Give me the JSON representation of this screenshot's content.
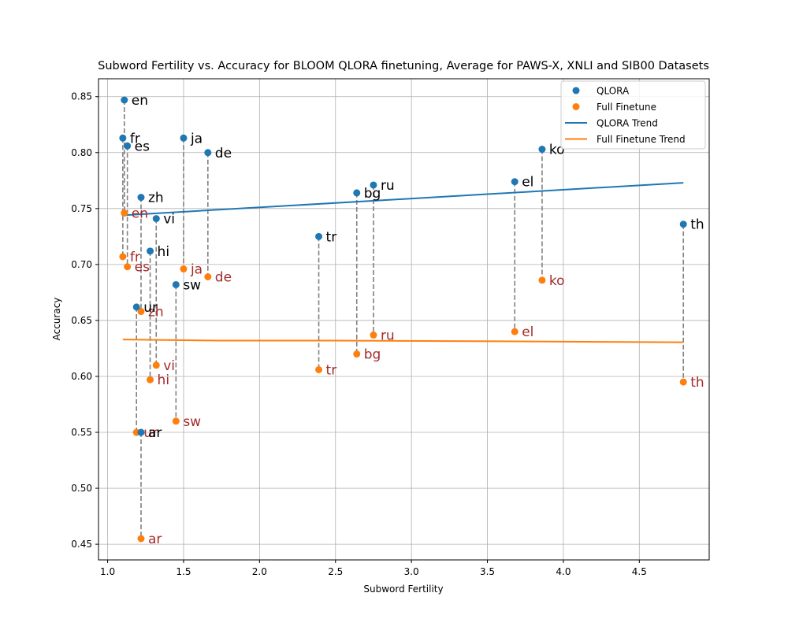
{
  "chart_data": {
    "type": "scatter",
    "title": "Subword Fertility vs. Accuracy for BLOOM QLORA finetuning, Average for PAWS-X, XNLI and SIB00 Datasets",
    "xlabel": "Subword Fertility",
    "ylabel": "Accuracy",
    "xlim": [
      0.94,
      4.96
    ],
    "ylim": [
      0.436,
      0.866
    ],
    "xticks": [
      "1.0",
      "1.5",
      "2.0",
      "2.5",
      "3.0",
      "3.5",
      "4.0",
      "4.5"
    ],
    "xtick_values": [
      1.0,
      1.5,
      2.0,
      2.5,
      3.0,
      3.5,
      4.0,
      4.5
    ],
    "yticks": [
      "0.45",
      "0.50",
      "0.55",
      "0.60",
      "0.65",
      "0.70",
      "0.75",
      "0.80",
      "0.85"
    ],
    "ytick_values": [
      0.45,
      0.5,
      0.55,
      0.6,
      0.65,
      0.7,
      0.75,
      0.8,
      0.85
    ],
    "grid": true,
    "legend_position": "top-right",
    "colors": {
      "qlora": "#1f77b4",
      "full": "#ff7f0e",
      "qlora_label": "#000000",
      "full_label": "#a52a2a",
      "connector": "#808080",
      "grid": "#b0b0b0"
    },
    "legend": [
      {
        "label": "QLORA",
        "kind": "marker",
        "color": "#1f77b4"
      },
      {
        "label": "Full Finetune",
        "kind": "marker",
        "color": "#ff7f0e"
      },
      {
        "label": "QLORA Trend",
        "kind": "line",
        "color": "#1f77b4"
      },
      {
        "label": "Full Finetune Trend",
        "kind": "line",
        "color": "#ff7f0e"
      }
    ],
    "languages": [
      "en",
      "fr",
      "es",
      "ja",
      "de",
      "zh",
      "vi",
      "hi",
      "ur",
      "ar",
      "sw",
      "tr",
      "bg",
      "ru",
      "el",
      "ko",
      "th"
    ],
    "fertility": [
      1.11,
      1.1,
      1.13,
      1.5,
      1.66,
      1.22,
      1.32,
      1.28,
      1.19,
      1.22,
      1.45,
      2.39,
      2.64,
      2.75,
      3.68,
      3.86,
      4.79
    ],
    "series": [
      {
        "name": "QLORA",
        "values": [
          0.847,
          0.813,
          0.806,
          0.813,
          0.8,
          0.76,
          0.741,
          0.712,
          0.662,
          0.55,
          0.682,
          0.725,
          0.764,
          0.771,
          0.774,
          0.803,
          0.736
        ]
      },
      {
        "name": "Full Finetune",
        "values": [
          0.746,
          0.707,
          0.698,
          0.696,
          0.689,
          0.658,
          0.61,
          0.597,
          0.55,
          0.455,
          0.56,
          0.606,
          0.62,
          0.637,
          0.64,
          0.686,
          0.595
        ]
      }
    ],
    "trends": [
      {
        "name": "QLORA Trend",
        "x": [
          1.1,
          4.79
        ],
        "y": [
          0.744,
          0.773
        ]
      },
      {
        "name": "Full Finetune Trend",
        "x": [
          1.1,
          1.75,
          2.5,
          3.4,
          4.79
        ],
        "y": [
          0.633,
          0.632,
          0.632,
          0.6315,
          0.6305
        ]
      }
    ]
  }
}
